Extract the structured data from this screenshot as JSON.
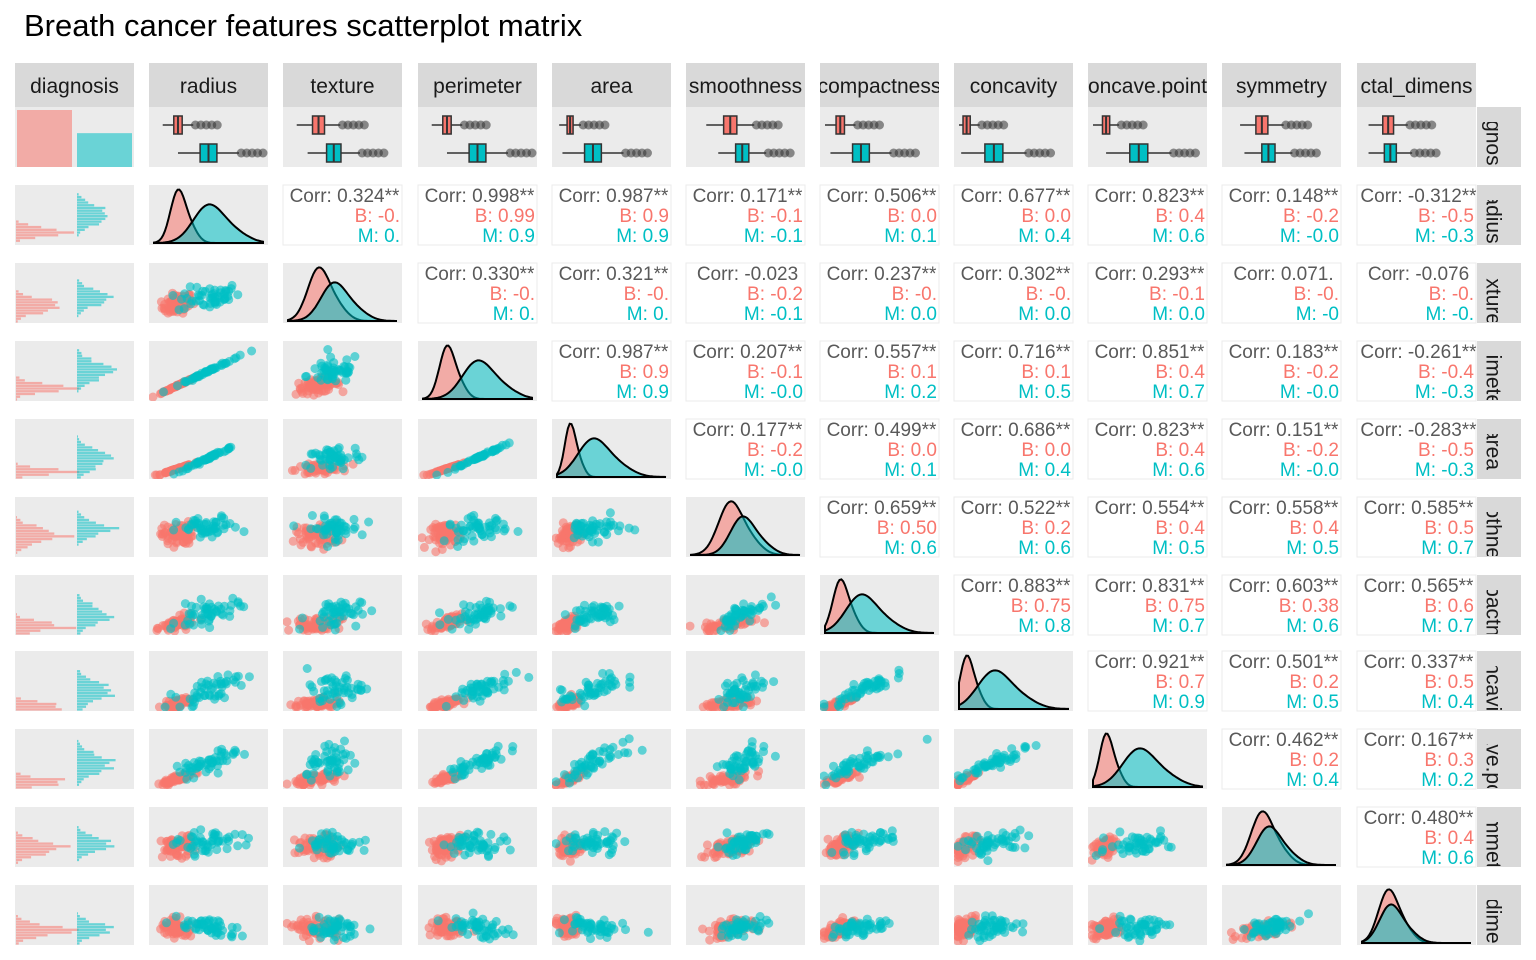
{
  "title": "Breath cancer features scatterplot matrix",
  "colors": {
    "B": "#F8766D",
    "M": "#00BFC4",
    "panel_bg": "#EBEBEB",
    "strip_bg": "#D9D9D9",
    "corr_overall": "#595959"
  },
  "chart_data": {
    "type": "scatterplot-matrix",
    "variables": [
      "diagnosis",
      "radius",
      "texture",
      "perimeter",
      "area",
      "smoothness",
      "compactness",
      "concavity",
      "concave.points",
      "symmetry",
      "fractal_dimension"
    ],
    "column_strip_labels": [
      "diagnosis",
      "radius",
      "texture",
      "perimeter",
      "area",
      "smoothness",
      "compactness",
      "concavity",
      "oncave.point",
      "symmetry",
      "ctal_dimens"
    ],
    "row_strip_labels": [
      "agnos",
      "radius",
      "texture",
      "erimete",
      "area",
      "oothne",
      "npactn",
      "oncavi",
      "cave.po",
      "ymmet",
      "_dime"
    ],
    "groups": [
      "B",
      "M"
    ],
    "diagnosis_counts": {
      "B": 357,
      "M": 212
    },
    "correlations": [
      {
        "row": 1,
        "col": 2,
        "overall": "Corr: 0.324**",
        "B": "B: -0.",
        "M": "M: 0."
      },
      {
        "row": 1,
        "col": 3,
        "overall": "Corr: 0.998**",
        "B": "B: 0.99",
        "M": "M: 0.9"
      },
      {
        "row": 1,
        "col": 4,
        "overall": "Corr: 0.987**",
        "B": "B: 0.9",
        "M": "M: 0.9"
      },
      {
        "row": 1,
        "col": 5,
        "overall": "Corr: 0.171**",
        "B": "B: -0.1",
        "M": "M: -0.1"
      },
      {
        "row": 1,
        "col": 6,
        "overall": "Corr: 0.506**",
        "B": "B: 0.0",
        "M": "M: 0.1"
      },
      {
        "row": 1,
        "col": 7,
        "overall": "Corr: 0.677**",
        "B": "B: 0.0",
        "M": "M: 0.4"
      },
      {
        "row": 1,
        "col": 8,
        "overall": "Corr: 0.823**",
        "B": "B: 0.4",
        "M": "M: 0.6"
      },
      {
        "row": 1,
        "col": 9,
        "overall": "Corr: 0.148**",
        "B": "B: -0.2",
        "M": "M: -0.0"
      },
      {
        "row": 1,
        "col": 10,
        "overall": "Corr: -0.312**",
        "B": "B: -0.5",
        "M": "M: -0.3"
      },
      {
        "row": 2,
        "col": 3,
        "overall": "Corr: 0.330**",
        "B": "B: -0.",
        "M": "M: 0."
      },
      {
        "row": 2,
        "col": 4,
        "overall": "Corr: 0.321**",
        "B": "B: -0.",
        "M": "M: 0."
      },
      {
        "row": 2,
        "col": 5,
        "overall": "Corr: -0.023",
        "B": "B: -0.2",
        "M": "M: -0.1"
      },
      {
        "row": 2,
        "col": 6,
        "overall": "Corr: 0.237**",
        "B": "B: -0.",
        "M": "M: 0.0"
      },
      {
        "row": 2,
        "col": 7,
        "overall": "Corr: 0.302**",
        "B": "B: -0.",
        "M": "M: 0.0"
      },
      {
        "row": 2,
        "col": 8,
        "overall": "Corr: 0.293**",
        "B": "B: -0.1",
        "M": "M: 0.0"
      },
      {
        "row": 2,
        "col": 9,
        "overall": "Corr: 0.071.",
        "B": "B: -0.",
        "M": "M: -0"
      },
      {
        "row": 2,
        "col": 10,
        "overall": "Corr: -0.076",
        "B": "B: -0.",
        "M": "M: -0."
      },
      {
        "row": 3,
        "col": 4,
        "overall": "Corr: 0.987**",
        "B": "B: 0.9",
        "M": "M: 0.9"
      },
      {
        "row": 3,
        "col": 5,
        "overall": "Corr: 0.207**",
        "B": "B: -0.1",
        "M": "M: -0.0"
      },
      {
        "row": 3,
        "col": 6,
        "overall": "Corr: 0.557**",
        "B": "B: 0.1",
        "M": "M: 0.2"
      },
      {
        "row": 3,
        "col": 7,
        "overall": "Corr: 0.716**",
        "B": "B: 0.1",
        "M": "M: 0.5"
      },
      {
        "row": 3,
        "col": 8,
        "overall": "Corr: 0.851**",
        "B": "B: 0.4",
        "M": "M: 0.7"
      },
      {
        "row": 3,
        "col": 9,
        "overall": "Corr: 0.183**",
        "B": "B: -0.2",
        "M": "M: -0.0"
      },
      {
        "row": 3,
        "col": 10,
        "overall": "Corr: -0.261**",
        "B": "B: -0.4",
        "M": "M: -0.3"
      },
      {
        "row": 4,
        "col": 5,
        "overall": "Corr: 0.177**",
        "B": "B: -0.2",
        "M": "M: -0.0"
      },
      {
        "row": 4,
        "col": 6,
        "overall": "Corr: 0.499**",
        "B": "B: 0.0",
        "M": "M: 0.1"
      },
      {
        "row": 4,
        "col": 7,
        "overall": "Corr: 0.686**",
        "B": "B: 0.0",
        "M": "M: 0.4"
      },
      {
        "row": 4,
        "col": 8,
        "overall": "Corr: 0.823**",
        "B": "B: 0.4",
        "M": "M: 0.6"
      },
      {
        "row": 4,
        "col": 9,
        "overall": "Corr: 0.151**",
        "B": "B: -0.2",
        "M": "M: -0.0"
      },
      {
        "row": 4,
        "col": 10,
        "overall": "Corr: -0.283**",
        "B": "B: -0.5",
        "M": "M: -0.3"
      },
      {
        "row": 5,
        "col": 6,
        "overall": "Corr: 0.659**",
        "B": "B: 0.50",
        "M": "M: 0.6"
      },
      {
        "row": 5,
        "col": 7,
        "overall": "Corr: 0.522**",
        "B": "B: 0.2",
        "M": "M: 0.6"
      },
      {
        "row": 5,
        "col": 8,
        "overall": "Corr: 0.554**",
        "B": "B: 0.4",
        "M": "M: 0.5"
      },
      {
        "row": 5,
        "col": 9,
        "overall": "Corr: 0.558**",
        "B": "B: 0.4",
        "M": "M: 0.5"
      },
      {
        "row": 5,
        "col": 10,
        "overall": "Corr: 0.585**",
        "B": "B: 0.5",
        "M": "M: 0.7"
      },
      {
        "row": 6,
        "col": 7,
        "overall": "Corr: 0.883**",
        "B": "B: 0.75",
        "M": "M: 0.8"
      },
      {
        "row": 6,
        "col": 8,
        "overall": "Corr: 0.831**",
        "B": "B: 0.75",
        "M": "M: 0.7"
      },
      {
        "row": 6,
        "col": 9,
        "overall": "Corr: 0.603**",
        "B": "B: 0.38",
        "M": "M: 0.6"
      },
      {
        "row": 6,
        "col": 10,
        "overall": "Corr: 0.565**",
        "B": "B: 0.6",
        "M": "M: 0.7"
      },
      {
        "row": 7,
        "col": 8,
        "overall": "Corr: 0.921**",
        "B": "B: 0.7",
        "M": "M: 0.9"
      },
      {
        "row": 7,
        "col": 9,
        "overall": "Corr: 0.501**",
        "B": "B: 0.2",
        "M": "M: 0.5"
      },
      {
        "row": 7,
        "col": 10,
        "overall": "Corr: 0.337**",
        "B": "B: 0.5",
        "M": "M: 0.4"
      },
      {
        "row": 8,
        "col": 9,
        "overall": "Corr: 0.462**",
        "B": "B: 0.2",
        "M": "M: 0.4"
      },
      {
        "row": 8,
        "col": 10,
        "overall": "Corr: 0.167**",
        "B": "B: 0.3",
        "M": "M: 0.2"
      },
      {
        "row": 9,
        "col": 10,
        "overall": "Corr: 0.480**",
        "B": "B: 0.4",
        "M": "M: 0.6"
      }
    ]
  }
}
